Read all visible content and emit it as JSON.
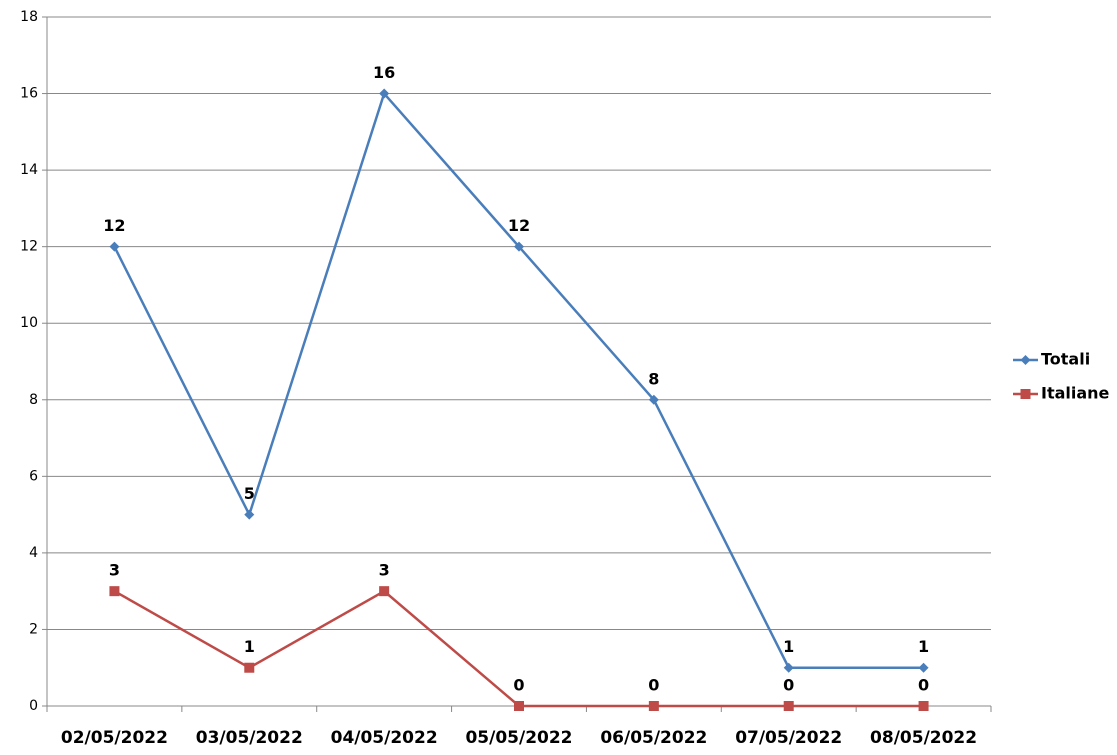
{
  "chart_data": {
    "type": "line",
    "categories": [
      "02/05/2022",
      "03/05/2022",
      "04/05/2022",
      "05/05/2022",
      "06/05/2022",
      "07/05/2022",
      "08/05/2022"
    ],
    "series": [
      {
        "name": "Totali",
        "color": "#4a7ebb",
        "marker": "diamond",
        "values": [
          12,
          5,
          16,
          12,
          8,
          1,
          1
        ]
      },
      {
        "name": "Italiane",
        "color": "#be4b48",
        "marker": "square",
        "values": [
          3,
          1,
          3,
          0,
          0,
          0,
          0
        ]
      }
    ],
    "ylim": [
      0,
      18
    ],
    "yticks": [
      0,
      2,
      4,
      6,
      8,
      10,
      12,
      14,
      16,
      18
    ],
    "grid": true,
    "legend": "right"
  }
}
